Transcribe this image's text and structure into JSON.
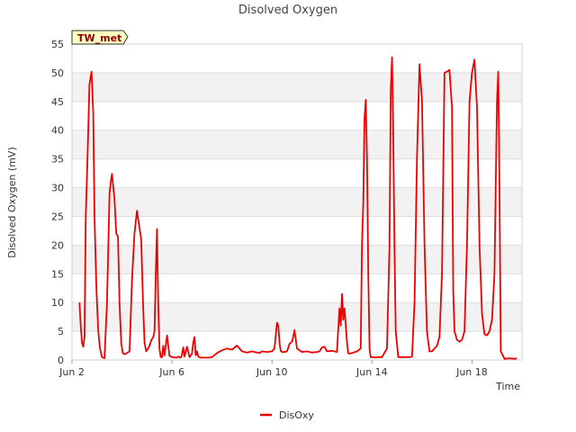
{
  "chart_data": {
    "type": "line",
    "title": "Disolved Oxygen",
    "xlabel": "Time",
    "ylabel": "Disolved Oxygen (mV)",
    "station_tag": "TW_met",
    "ylim": [
      0,
      55
    ],
    "yticks": [
      0,
      5,
      10,
      15,
      20,
      25,
      30,
      35,
      40,
      45,
      50,
      55
    ],
    "xlim": [
      0,
      18
    ],
    "xticks": [
      {
        "value": 0,
        "label": "Jun 2"
      },
      {
        "value": 4,
        "label": "Jun 6"
      },
      {
        "value": 8,
        "label": "Jun 10"
      },
      {
        "value": 12,
        "label": "Jun 14"
      },
      {
        "value": 16,
        "label": "Jun 18"
      }
    ],
    "grid": true,
    "legend_position": "bottom-center",
    "colors": {
      "series": "#ee0000",
      "band": "#f2f2f2",
      "grid": "#dddddd",
      "tag_bg": "#ffffc0"
    },
    "series": [
      {
        "name": "DisOxy",
        "x": [
          0.3,
          0.35,
          0.4,
          0.45,
          0.5,
          0.55,
          0.62,
          0.7,
          0.78,
          0.85,
          0.9,
          0.98,
          1.05,
          1.12,
          1.2,
          1.3,
          1.4,
          1.5,
          1.55,
          1.6,
          1.7,
          1.77,
          1.84,
          1.9,
          1.97,
          2.03,
          2.1,
          2.2,
          2.3,
          2.4,
          2.5,
          2.6,
          2.7,
          2.77,
          2.84,
          2.9,
          2.97,
          3.05,
          3.1,
          3.18,
          3.25,
          3.3,
          3.35,
          3.4,
          3.45,
          3.5,
          3.55,
          3.6,
          3.65,
          3.7,
          3.8,
          3.9,
          4.0,
          4.07,
          4.12,
          4.18,
          4.22,
          4.27,
          4.32,
          4.37,
          4.4,
          4.45,
          4.5,
          4.6,
          4.7,
          4.8,
          4.85,
          4.9,
          4.95,
          5.0,
          5.05,
          5.1,
          5.15,
          5.2,
          5.25,
          5.3,
          5.4,
          5.5,
          5.6,
          5.8,
          6.0,
          6.2,
          6.4,
          6.6,
          6.8,
          7.0,
          7.2,
          7.4,
          7.5,
          7.6,
          7.8,
          8.0,
          8.1,
          8.2,
          8.25,
          8.3,
          8.35,
          8.4,
          8.5,
          8.6,
          8.7,
          8.75,
          8.8,
          8.85,
          8.9,
          9.0,
          9.2,
          9.4,
          9.6,
          9.8,
          9.9,
          10.0,
          10.1,
          10.2,
          10.4,
          10.6,
          10.7,
          10.75,
          10.8,
          10.85,
          10.9,
          10.95,
          11.0,
          11.05,
          11.1,
          11.2,
          11.4,
          11.55,
          11.6,
          11.65,
          11.7,
          11.75,
          11.8,
          11.85,
          11.9,
          11.95,
          12.05,
          12.15,
          12.25,
          12.4,
          12.6,
          12.7,
          12.75,
          12.8,
          12.85,
          12.9,
          12.95,
          13.05,
          13.15,
          13.3,
          13.5,
          13.6,
          13.7,
          13.8,
          13.9,
          14.0,
          14.1,
          14.2,
          14.3,
          14.4,
          14.5,
          14.6,
          14.7,
          14.8,
          14.9,
          15.0,
          15.1,
          15.2,
          15.25,
          15.3,
          15.4,
          15.5,
          15.6,
          15.7,
          15.8,
          15.9,
          16.0,
          16.1,
          16.2,
          16.3,
          16.4,
          16.5,
          16.6,
          16.7,
          16.8,
          16.9,
          17.0,
          17.05,
          17.1,
          17.15,
          17.3,
          17.5,
          17.7,
          17.8
        ],
        "values": [
          10,
          6,
          3,
          2.3,
          4,
          25,
          35,
          48,
          50.2,
          43,
          25,
          12,
          5,
          2,
          0.5,
          0.3,
          10,
          29,
          31,
          32.4,
          28,
          22,
          21.5,
          10,
          3,
          1.2,
          1,
          1.2,
          1.5,
          14,
          22,
          26,
          23,
          21,
          10,
          3,
          1.5,
          2,
          2.5,
          3.5,
          4,
          5,
          15,
          22.8,
          10,
          2,
          0.5,
          0.5,
          2.5,
          0.8,
          4.3,
          0.7,
          0.5,
          0.5,
          0.4,
          0.4,
          0.5,
          0.6,
          0.4,
          0.5,
          1,
          2.2,
          0.6,
          2.3,
          0.5,
          1.1,
          3,
          4,
          0.8,
          1.5,
          0.6,
          0.5,
          0.4,
          0.4,
          0.4,
          0.4,
          0.4,
          0.4,
          0.5,
          1.2,
          1.7,
          2,
          1.8,
          2.5,
          1.5,
          1.3,
          1.5,
          1.3,
          1.2,
          1.5,
          1.4,
          1.5,
          2,
          6.5,
          6,
          3,
          1.6,
          1.4,
          1.4,
          1.5,
          2.8,
          3,
          3.2,
          4,
          5.2,
          2,
          1.4,
          1.5,
          1.3,
          1.4,
          1.5,
          2.2,
          2.3,
          1.5,
          1.6,
          1.4,
          9,
          6,
          11.5,
          7,
          9,
          6,
          3,
          1.2,
          1.1,
          1.2,
          1.5,
          2,
          20,
          27,
          42,
          45.3,
          35,
          15,
          2,
          0.5,
          0.5,
          0.4,
          0.5,
          0.5,
          2,
          20,
          47,
          52.7,
          40,
          20,
          5,
          0.5,
          0.5,
          0.5,
          0.5,
          0.6,
          10,
          35,
          51.5,
          45,
          20,
          5,
          1.5,
          1.5,
          2,
          2.5,
          4,
          15,
          50,
          50.2,
          50.5,
          44,
          12,
          5,
          3.5,
          3.2,
          3.5,
          5,
          20,
          45,
          50,
          52.3,
          44,
          20,
          8,
          4.5,
          4.3,
          5,
          7,
          15,
          45,
          50.2,
          30,
          1.5,
          0.2,
          0.3,
          0.2,
          0.3
        ]
      }
    ]
  }
}
